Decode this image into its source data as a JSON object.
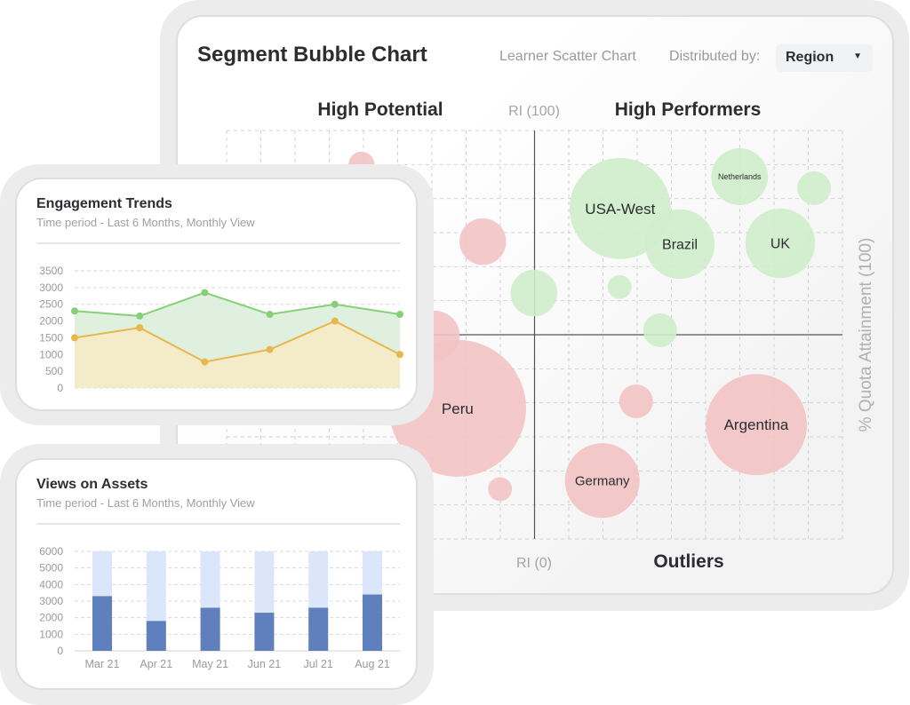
{
  "segment_card": {
    "title": "Segment Bubble Chart",
    "scatter_link": "Learner Scatter Chart",
    "distributed_by_label": "Distributed by:",
    "dropdown_value": "Region",
    "dropdown_icon": "caret-down-icon"
  },
  "chart_data": [
    {
      "type": "scatter",
      "title": "Segment Bubble Chart",
      "quadrant_labels": {
        "top_left": "High Potential",
        "top_right": "High Performers",
        "bottom_right": "Outliers"
      },
      "axis_labels": {
        "top": "RI (100)",
        "bottom": "RI (0)",
        "right": "% Quota Attainment (100)"
      },
      "xlim": [
        0,
        100
      ],
      "ylim": [
        0,
        100
      ],
      "grid": true,
      "colors": {
        "positive": "#cfeccb",
        "negative": "#f2c3c3"
      },
      "bubbles": [
        {
          "label": "",
          "x": 21.9,
          "y": 91.7,
          "size": 7,
          "group": "negative"
        },
        {
          "label": "",
          "x": 41.6,
          "y": 72.8,
          "size": 23,
          "group": "negative"
        },
        {
          "label": "",
          "x": 49.9,
          "y": 60.2,
          "size": 23,
          "group": "positive"
        },
        {
          "label": "USA-West",
          "x": 63.9,
          "y": 80.9,
          "size": 108,
          "group": "positive"
        },
        {
          "label": "Brazil",
          "x": 73.6,
          "y": 72.2,
          "size": 51,
          "group": "positive"
        },
        {
          "label": "Netherlands",
          "x": 83.3,
          "y": 88.7,
          "size": 34,
          "group": "positive"
        },
        {
          "label": "",
          "x": 95.4,
          "y": 85.9,
          "size": 12,
          "group": "positive"
        },
        {
          "label": "UK",
          "x": 89.9,
          "y": 72.4,
          "size": 51,
          "group": "positive"
        },
        {
          "label": "",
          "x": 63.8,
          "y": 61.7,
          "size": 6,
          "group": "positive"
        },
        {
          "label": "",
          "x": 70.4,
          "y": 51.1,
          "size": 12,
          "group": "positive"
        },
        {
          "label": "",
          "x": 33.8,
          "y": 49.8,
          "size": 26,
          "group": "negative"
        },
        {
          "label": "Peru",
          "x": 37.5,
          "y": 32.0,
          "size": 198,
          "group": "negative"
        },
        {
          "label": "",
          "x": 66.5,
          "y": 33.7,
          "size": 12,
          "group": "negative"
        },
        {
          "label": "Argentina",
          "x": 86.0,
          "y": 28.0,
          "size": 108,
          "group": "negative"
        },
        {
          "label": "Germany",
          "x": 61.0,
          "y": 14.3,
          "size": 59,
          "group": "negative"
        },
        {
          "label": "",
          "x": 44.4,
          "y": 12.2,
          "size": 6,
          "group": "negative"
        }
      ]
    },
    {
      "type": "area",
      "title": "Engagement Trends",
      "subtitle": "Time period - Last 6 Months, Monthly View",
      "ylim": [
        0,
        3500
      ],
      "yticks": [
        "3500",
        "3000",
        "2500",
        "2000",
        "1500",
        "1000",
        "500",
        "0"
      ],
      "grid": true,
      "series": [
        {
          "values": [
            2300,
            2150,
            2850,
            2200,
            2500,
            2200
          ],
          "color": "#86cf78",
          "fill": "#dcf0da"
        },
        {
          "values": [
            1500,
            1800,
            780,
            1150,
            2000,
            1000
          ],
          "color": "#e8b64c",
          "fill": "#f6ebc6"
        }
      ]
    },
    {
      "type": "bar",
      "title": "Views on Assets",
      "subtitle": "Time period - Last 6 Months, Monthly View",
      "categories": [
        "Mar 21",
        "Apr 21",
        "May 21",
        "Jun 21",
        "Jul 21",
        "Aug 21"
      ],
      "ylim": [
        0,
        6000
      ],
      "yticks": [
        "6000",
        "5000",
        "4000",
        "3000",
        "2000",
        "1000",
        "0"
      ],
      "grid": true,
      "series": [
        {
          "values": [
            3300,
            1800,
            2600,
            2300,
            2600,
            3400
          ],
          "color": "#6080bd"
        },
        {
          "values": [
            6000,
            6000,
            6000,
            6000,
            6000,
            6000
          ],
          "color": "#dbe6fb"
        }
      ]
    }
  ]
}
